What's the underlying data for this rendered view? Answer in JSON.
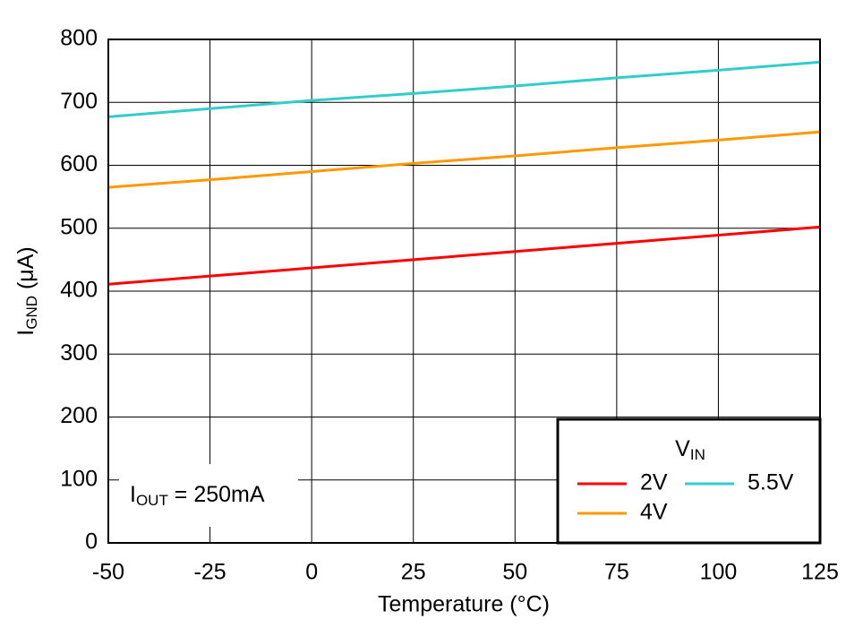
{
  "chart_data": {
    "type": "line",
    "x_label": "Temperature (°C)",
    "y_label": {
      "main": "I",
      "sub": "GND",
      "rest": " (μA)"
    },
    "annotation": {
      "main": "I",
      "sub": "OUT",
      "rest": " = 250mA"
    },
    "x": [
      -50,
      -25,
      0,
      25,
      50,
      75,
      100,
      125
    ],
    "series": [
      {
        "name": "2V",
        "color": "#ff0000",
        "values": [
          411,
          424,
          437,
          450,
          463,
          476,
          489,
          502
        ]
      },
      {
        "name": "4V",
        "color": "#ff9900",
        "values": [
          565,
          577,
          590,
          603,
          615,
          628,
          640,
          653
        ]
      },
      {
        "name": "5.5V",
        "color": "#33cccc",
        "values": [
          677,
          690,
          703,
          714,
          726,
          739,
          751,
          764
        ]
      }
    ],
    "legend": {
      "title": {
        "main": "V",
        "sub": "IN"
      },
      "position": "lower right"
    },
    "xlim": [
      -50,
      125
    ],
    "xticks": [
      -50,
      -25,
      0,
      25,
      50,
      75,
      100,
      125
    ],
    "ylim": [
      0,
      800
    ],
    "yticks": [
      0,
      100,
      200,
      300,
      400,
      500,
      600,
      700,
      800
    ],
    "grid": true
  }
}
